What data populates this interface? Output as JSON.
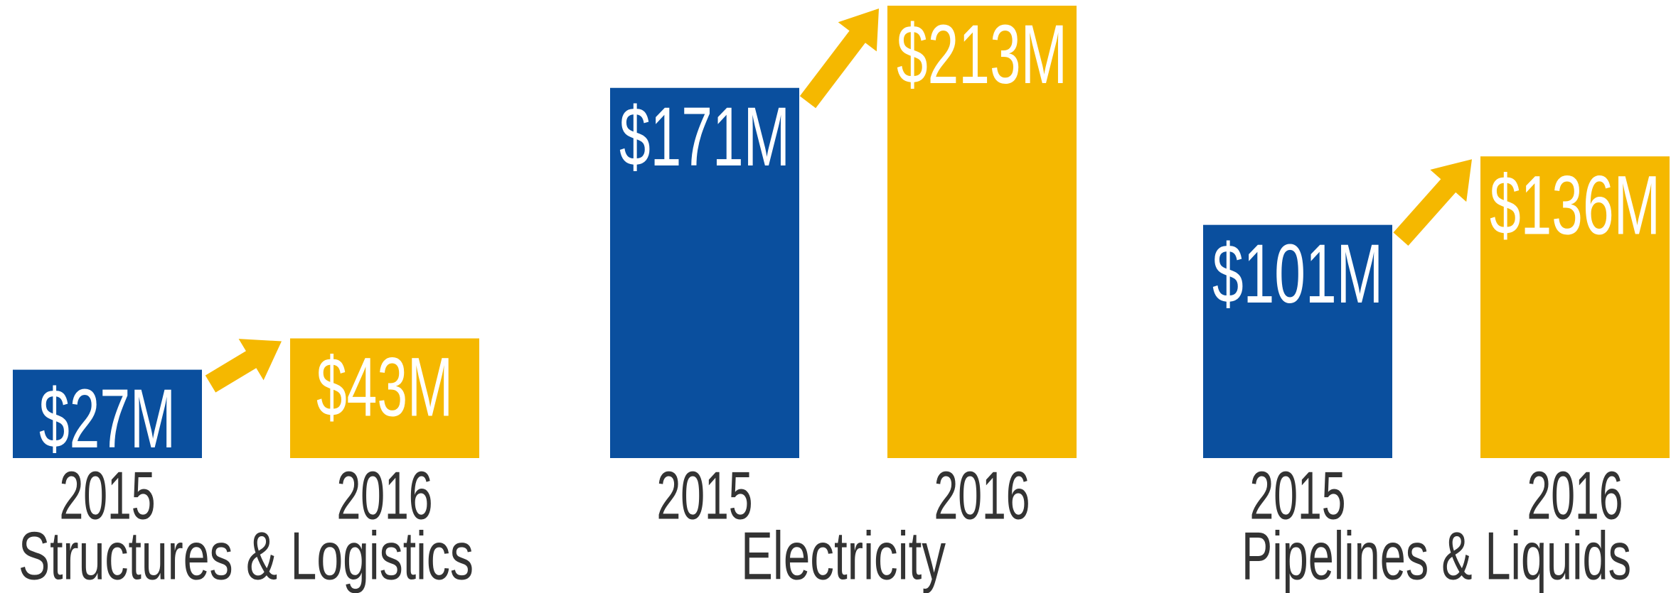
{
  "chart_data": {
    "type": "bar",
    "categories": [
      "Structures & Logistics",
      "Electricity",
      "Pipelines & Liquids"
    ],
    "series": [
      {
        "name": "2015",
        "color": "#0a4f9e",
        "values": [
          27,
          171,
          101
        ],
        "value_labels": [
          "$27M",
          "$171M",
          "$101M"
        ]
      },
      {
        "name": "2016",
        "color": "#f5b800",
        "values": [
          43,
          213,
          136
        ],
        "value_labels": [
          "$43M",
          "$213M",
          "$136M"
        ]
      }
    ]
  }
}
